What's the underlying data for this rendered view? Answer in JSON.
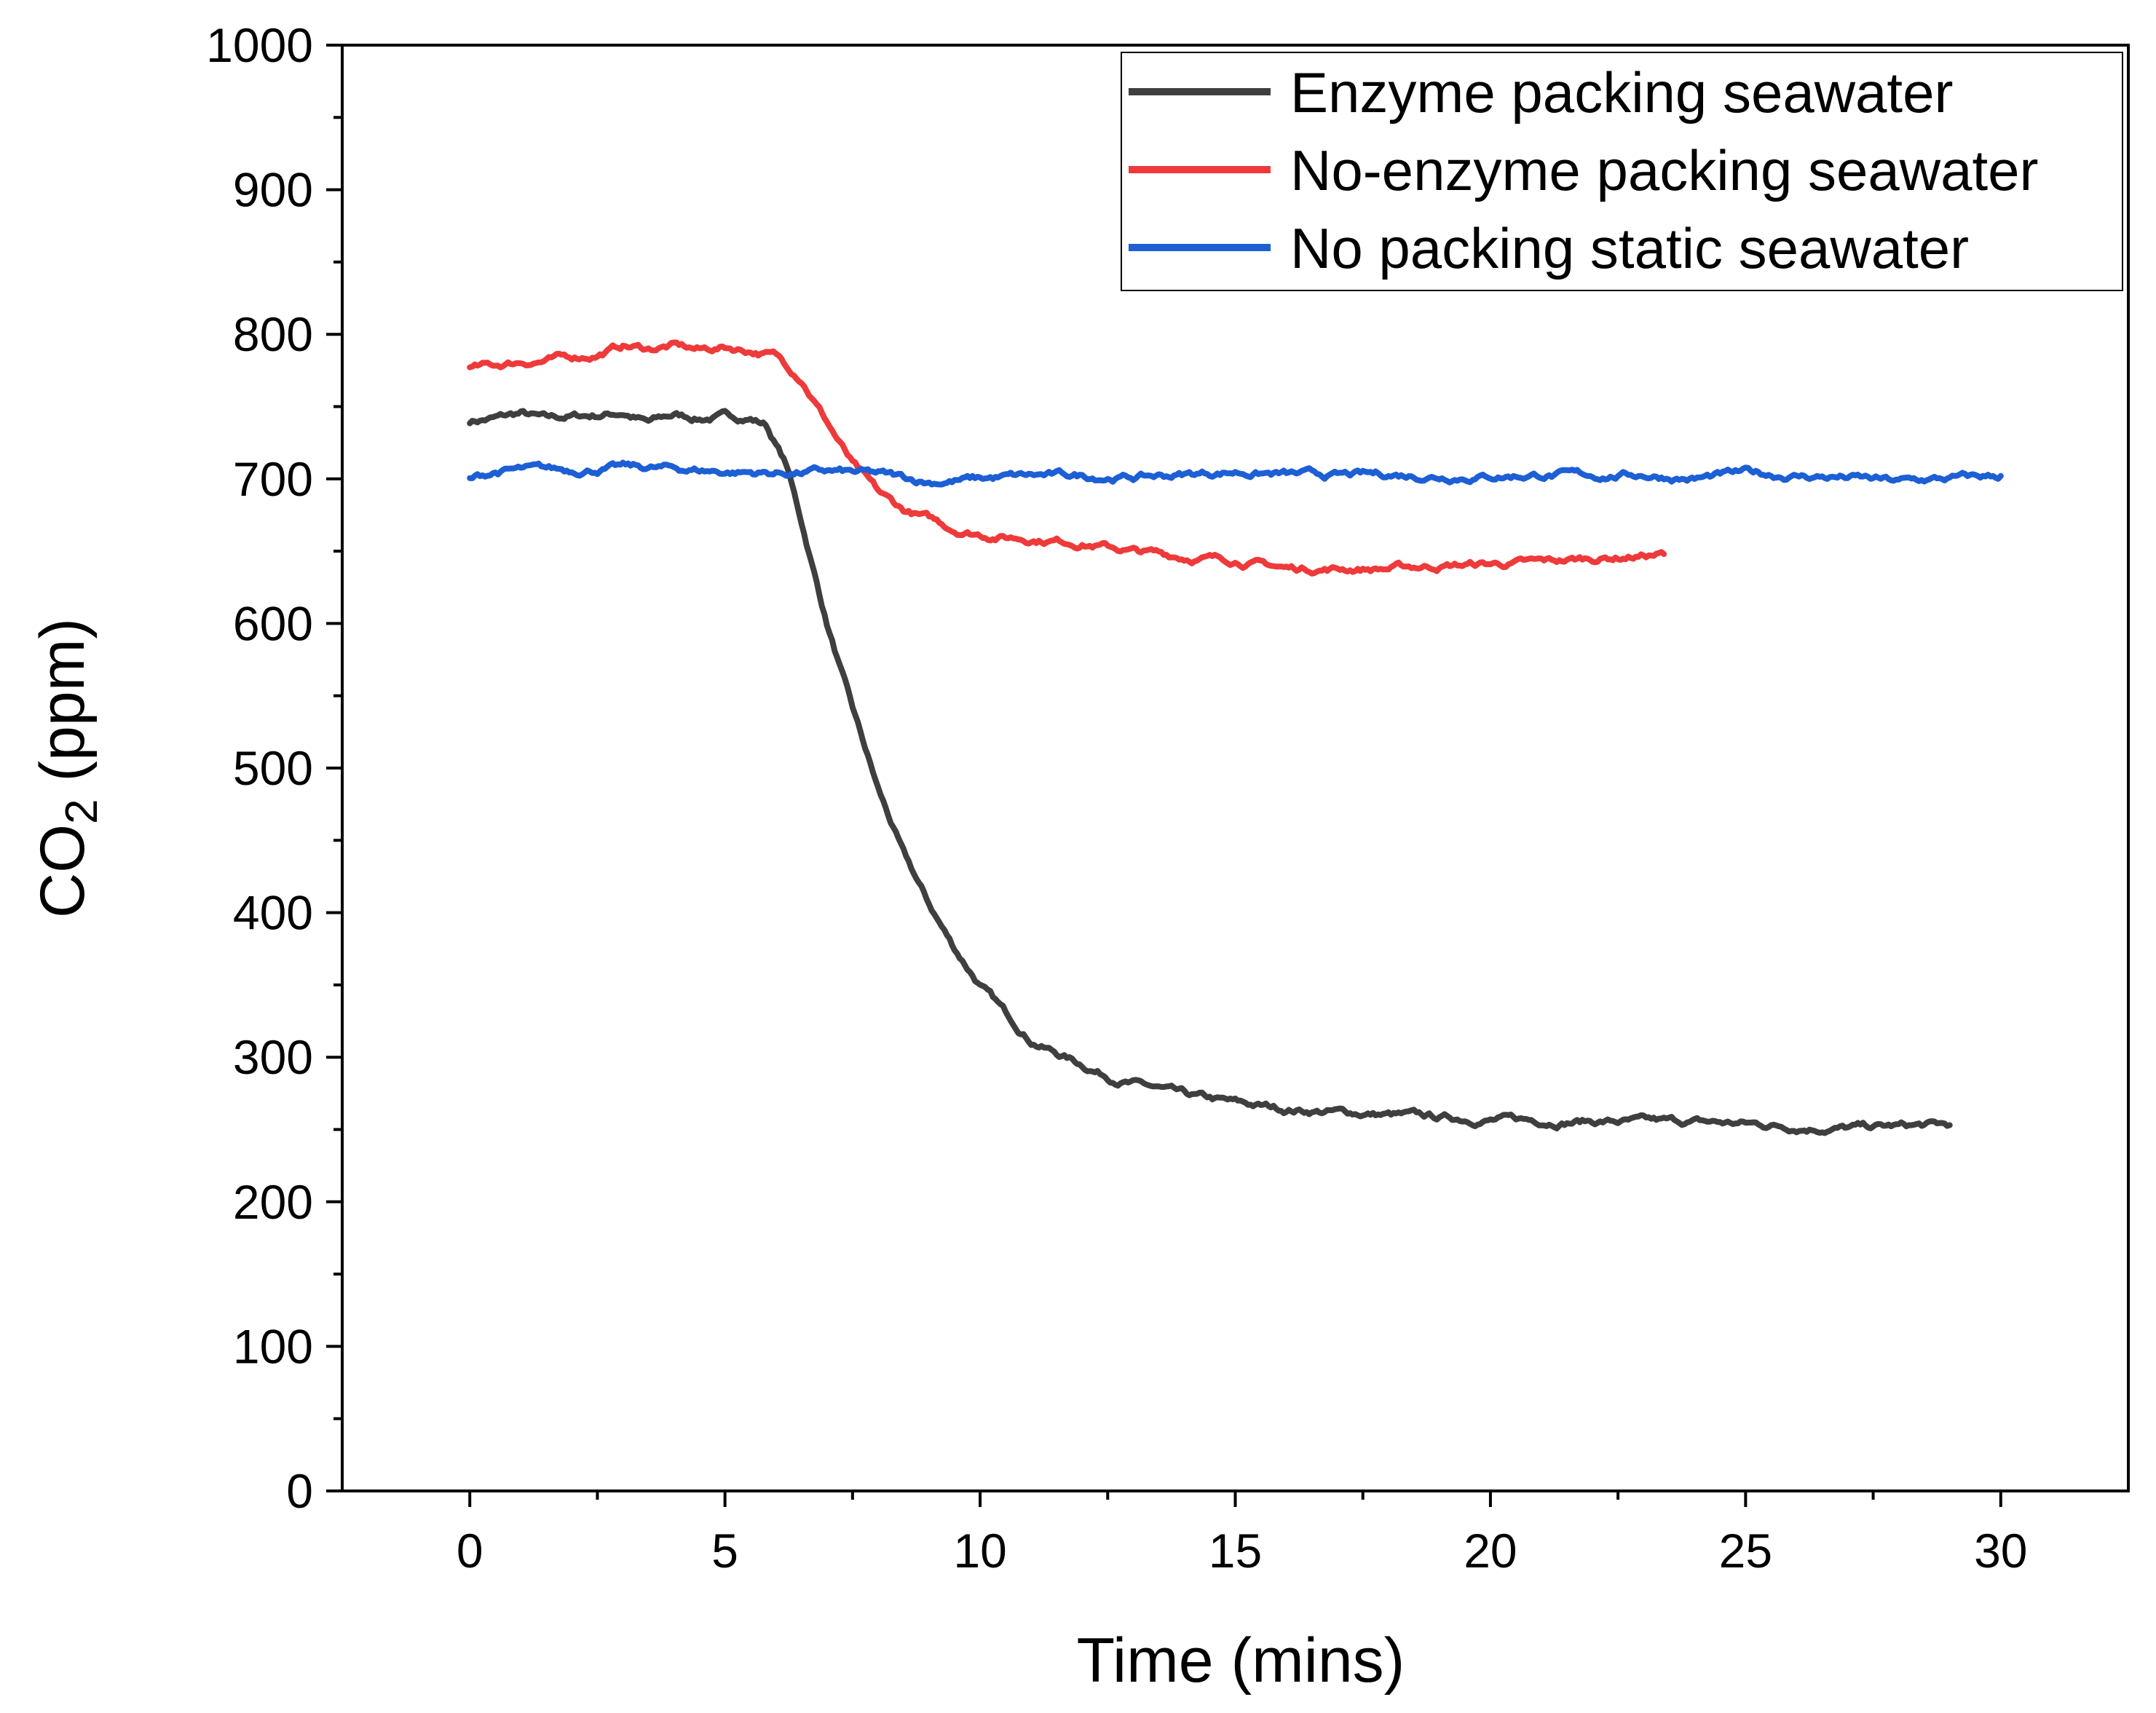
{
  "chart_data": {
    "type": "line",
    "title": "",
    "xlabel": "Time (mins)",
    "ylabel_main": "CO",
    "ylabel_sub": "2",
    "ylabel_unit": " (ppm)",
    "xlim": [
      -2.5,
      32.5
    ],
    "ylim": [
      0,
      1000
    ],
    "xticks": [
      0,
      5,
      10,
      15,
      20,
      25,
      30
    ],
    "xtick_labels": [
      "0",
      "5",
      "10",
      "15",
      "20",
      "25",
      "30"
    ],
    "yticks": [
      0,
      100,
      200,
      300,
      400,
      500,
      600,
      700,
      800,
      900,
      1000
    ],
    "ytick_labels": [
      "0",
      "100",
      "200",
      "300",
      "400",
      "500",
      "600",
      "700",
      "800",
      "900",
      "1000"
    ],
    "grid": false,
    "legend_position": "top-right",
    "series": [
      {
        "name": "Enzyme packing seawater",
        "color": "#3f3f3f",
        "points": [
          [
            0,
            740
          ],
          [
            0.5,
            742
          ],
          [
            1,
            745
          ],
          [
            1.5,
            741
          ],
          [
            2,
            743
          ],
          [
            2.5,
            744
          ],
          [
            3,
            746
          ],
          [
            3.5,
            739
          ],
          [
            4,
            744
          ],
          [
            4.5,
            742
          ],
          [
            5,
            743
          ],
          [
            5.5,
            742
          ],
          [
            5.8,
            738
          ],
          [
            6.2,
            710
          ],
          [
            6.5,
            670
          ],
          [
            7,
            600
          ],
          [
            7.5,
            540
          ],
          [
            8,
            485
          ],
          [
            8.5,
            440
          ],
          [
            9,
            405
          ],
          [
            9.5,
            375
          ],
          [
            10,
            350
          ],
          [
            10.5,
            330
          ],
          [
            11,
            312
          ],
          [
            11.5,
            303
          ],
          [
            12,
            295
          ],
          [
            12.5,
            287
          ],
          [
            13,
            282
          ],
          [
            13.5,
            278
          ],
          [
            14,
            273
          ],
          [
            15,
            268
          ],
          [
            16,
            264
          ],
          [
            17,
            262
          ],
          [
            18,
            260
          ],
          [
            19,
            258
          ],
          [
            20,
            257
          ],
          [
            21,
            256
          ],
          [
            22,
            256
          ],
          [
            23,
            255
          ],
          [
            24,
            255
          ],
          [
            25,
            254
          ],
          [
            26,
            252
          ],
          [
            27,
            251
          ],
          [
            28,
            252
          ],
          [
            29,
            253
          ]
        ]
      },
      {
        "name": "No-enzyme packing seawater",
        "color": "#ee3a3a",
        "points": [
          [
            0,
            776
          ],
          [
            0.5,
            778
          ],
          [
            1,
            781
          ],
          [
            1.5,
            782
          ],
          [
            2,
            784
          ],
          [
            2.5,
            786
          ],
          [
            3,
            792
          ],
          [
            3.5,
            790
          ],
          [
            4,
            792
          ],
          [
            4.5,
            789
          ],
          [
            5,
            791
          ],
          [
            5.5,
            789
          ],
          [
            6,
            785
          ],
          [
            6.5,
            770
          ],
          [
            7,
            740
          ],
          [
            7.5,
            710
          ],
          [
            8,
            690
          ],
          [
            8.5,
            678
          ],
          [
            9,
            672
          ],
          [
            9.5,
            665
          ],
          [
            10,
            662
          ],
          [
            10.5,
            660
          ],
          [
            11,
            659
          ],
          [
            12,
            656
          ],
          [
            13,
            650
          ],
          [
            14,
            646
          ],
          [
            15,
            644
          ],
          [
            16,
            638
          ],
          [
            17,
            638
          ],
          [
            18,
            638
          ],
          [
            19,
            640
          ],
          [
            20,
            641
          ],
          [
            21,
            642
          ],
          [
            22,
            645
          ],
          [
            23,
            647
          ],
          [
            23.4,
            648
          ]
        ]
      },
      {
        "name": "No packing static seawater",
        "color": "#1d5fd4",
        "points": [
          [
            0,
            700
          ],
          [
            0.5,
            705
          ],
          [
            1,
            706
          ],
          [
            2,
            706
          ],
          [
            3,
            708
          ],
          [
            4,
            707
          ],
          [
            5,
            705
          ],
          [
            6,
            704
          ],
          [
            7,
            705
          ],
          [
            8,
            703
          ],
          [
            9,
            698
          ],
          [
            10,
            700
          ],
          [
            11,
            702
          ],
          [
            12,
            702
          ],
          [
            13,
            701
          ],
          [
            14,
            703
          ],
          [
            15,
            705
          ],
          [
            16,
            703
          ],
          [
            17,
            702
          ],
          [
            18,
            703
          ],
          [
            19,
            702
          ],
          [
            20,
            702
          ],
          [
            21,
            703
          ],
          [
            22,
            702
          ],
          [
            23,
            703
          ],
          [
            24,
            700
          ],
          [
            25,
            704
          ],
          [
            26,
            702
          ],
          [
            27,
            701
          ],
          [
            28,
            698
          ],
          [
            29,
            700
          ],
          [
            30,
            702
          ]
        ]
      }
    ]
  }
}
